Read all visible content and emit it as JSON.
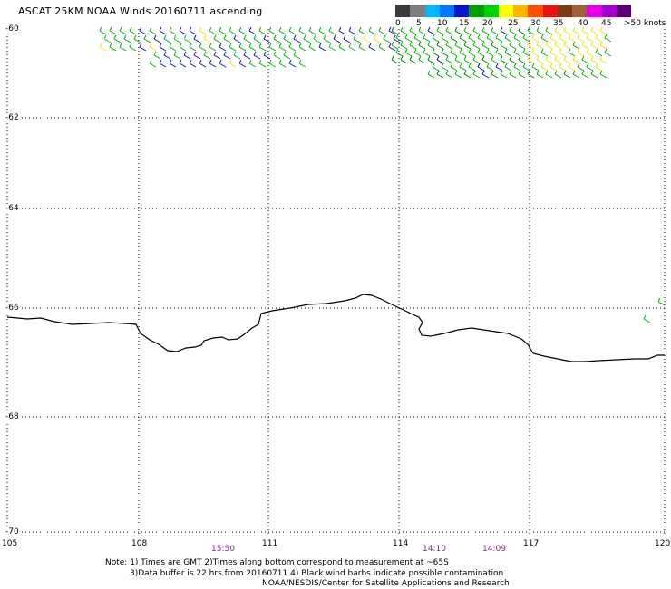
{
  "title": "ASCAT 25KM NOAA Winds 20160711 ascending",
  "colorbar": {
    "colors": [
      "#3a3a3a",
      "#7d7d7d",
      "#00b7ff",
      "#0078ff",
      "#0a14c8",
      "#00a000",
      "#00d200",
      "#ffff00",
      "#ffb400",
      "#ff5000",
      "#e61414",
      "#7a3a16",
      "#a06040",
      "#e600e6",
      "#a000c8",
      "#5a0078"
    ],
    "labels": [
      "0",
      "5",
      "10",
      "15",
      "20",
      "25",
      "30",
      "35",
      "40",
      "45"
    ],
    "unit": ">50 knots"
  },
  "map": {
    "lat_labels": [
      "-60",
      "-62",
      "-64",
      "-66",
      "-68",
      "-70"
    ],
    "lon_labels": [
      "105",
      "108",
      "111",
      "114",
      "117",
      "120"
    ],
    "time_labels": [
      "15:50",
      "14:10",
      "14:09"
    ]
  },
  "notes": {
    "line1": "Note: 1) Times are GMT 2)Times along bottom correspond to measurement at ~65S",
    "line2": "3)Data buffer is 22 hrs from 20160711 4) Black wind barbs indicate possible contamination",
    "line3": "NOAA/NESDIS/Center for Satellite Applications and Research"
  }
}
